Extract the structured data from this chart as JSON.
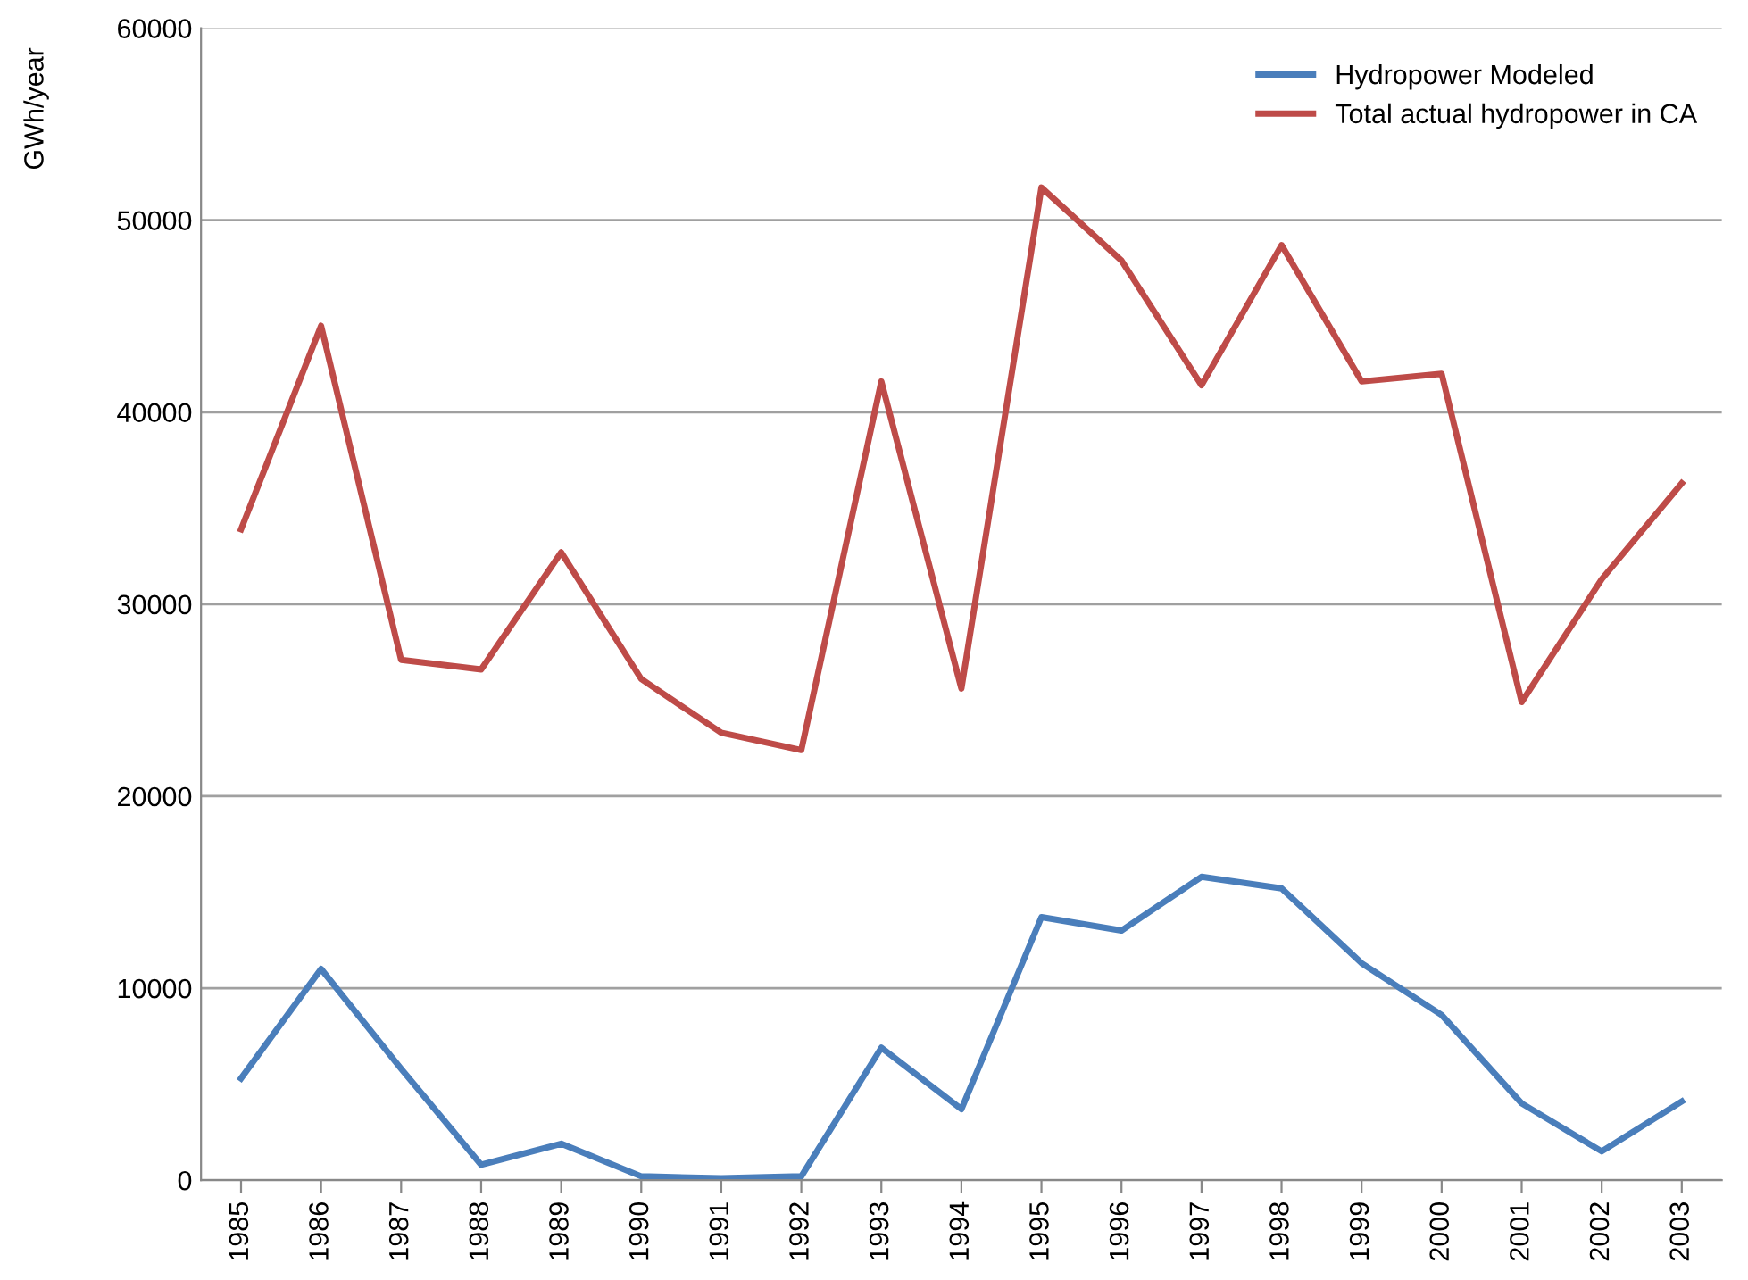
{
  "chart_data": {
    "type": "line",
    "ylabel": "GWh/year",
    "categories": [
      "1985",
      "1986",
      "1987",
      "1988",
      "1989",
      "1990",
      "1991",
      "1992",
      "1993",
      "1994",
      "1995",
      "1996",
      "1997",
      "1998",
      "1999",
      "2000",
      "2001",
      "2002",
      "2003"
    ],
    "series": [
      {
        "name": "Hydropower Modeled",
        "color": "#4a7ebb",
        "values": [
          5300,
          11000,
          5800,
          800,
          1900,
          200,
          100,
          200,
          6900,
          3700,
          13700,
          13000,
          15800,
          15200,
          11300,
          8600,
          4000,
          1500,
          4100
        ]
      },
      {
        "name": "Total actual hydropower in CA",
        "color": "#be4b48",
        "values": [
          33900,
          44500,
          27100,
          26600,
          32700,
          26100,
          23300,
          22400,
          41600,
          25600,
          51700,
          47900,
          41400,
          48700,
          41600,
          42000,
          24900,
          31300,
          36300
        ]
      }
    ],
    "ylim": [
      0,
      60000
    ],
    "yticks": [
      0,
      10000,
      20000,
      30000,
      40000,
      50000,
      60000
    ],
    "grid": "y",
    "legend": "top right",
    "marker": "none",
    "line_style": "solid"
  }
}
